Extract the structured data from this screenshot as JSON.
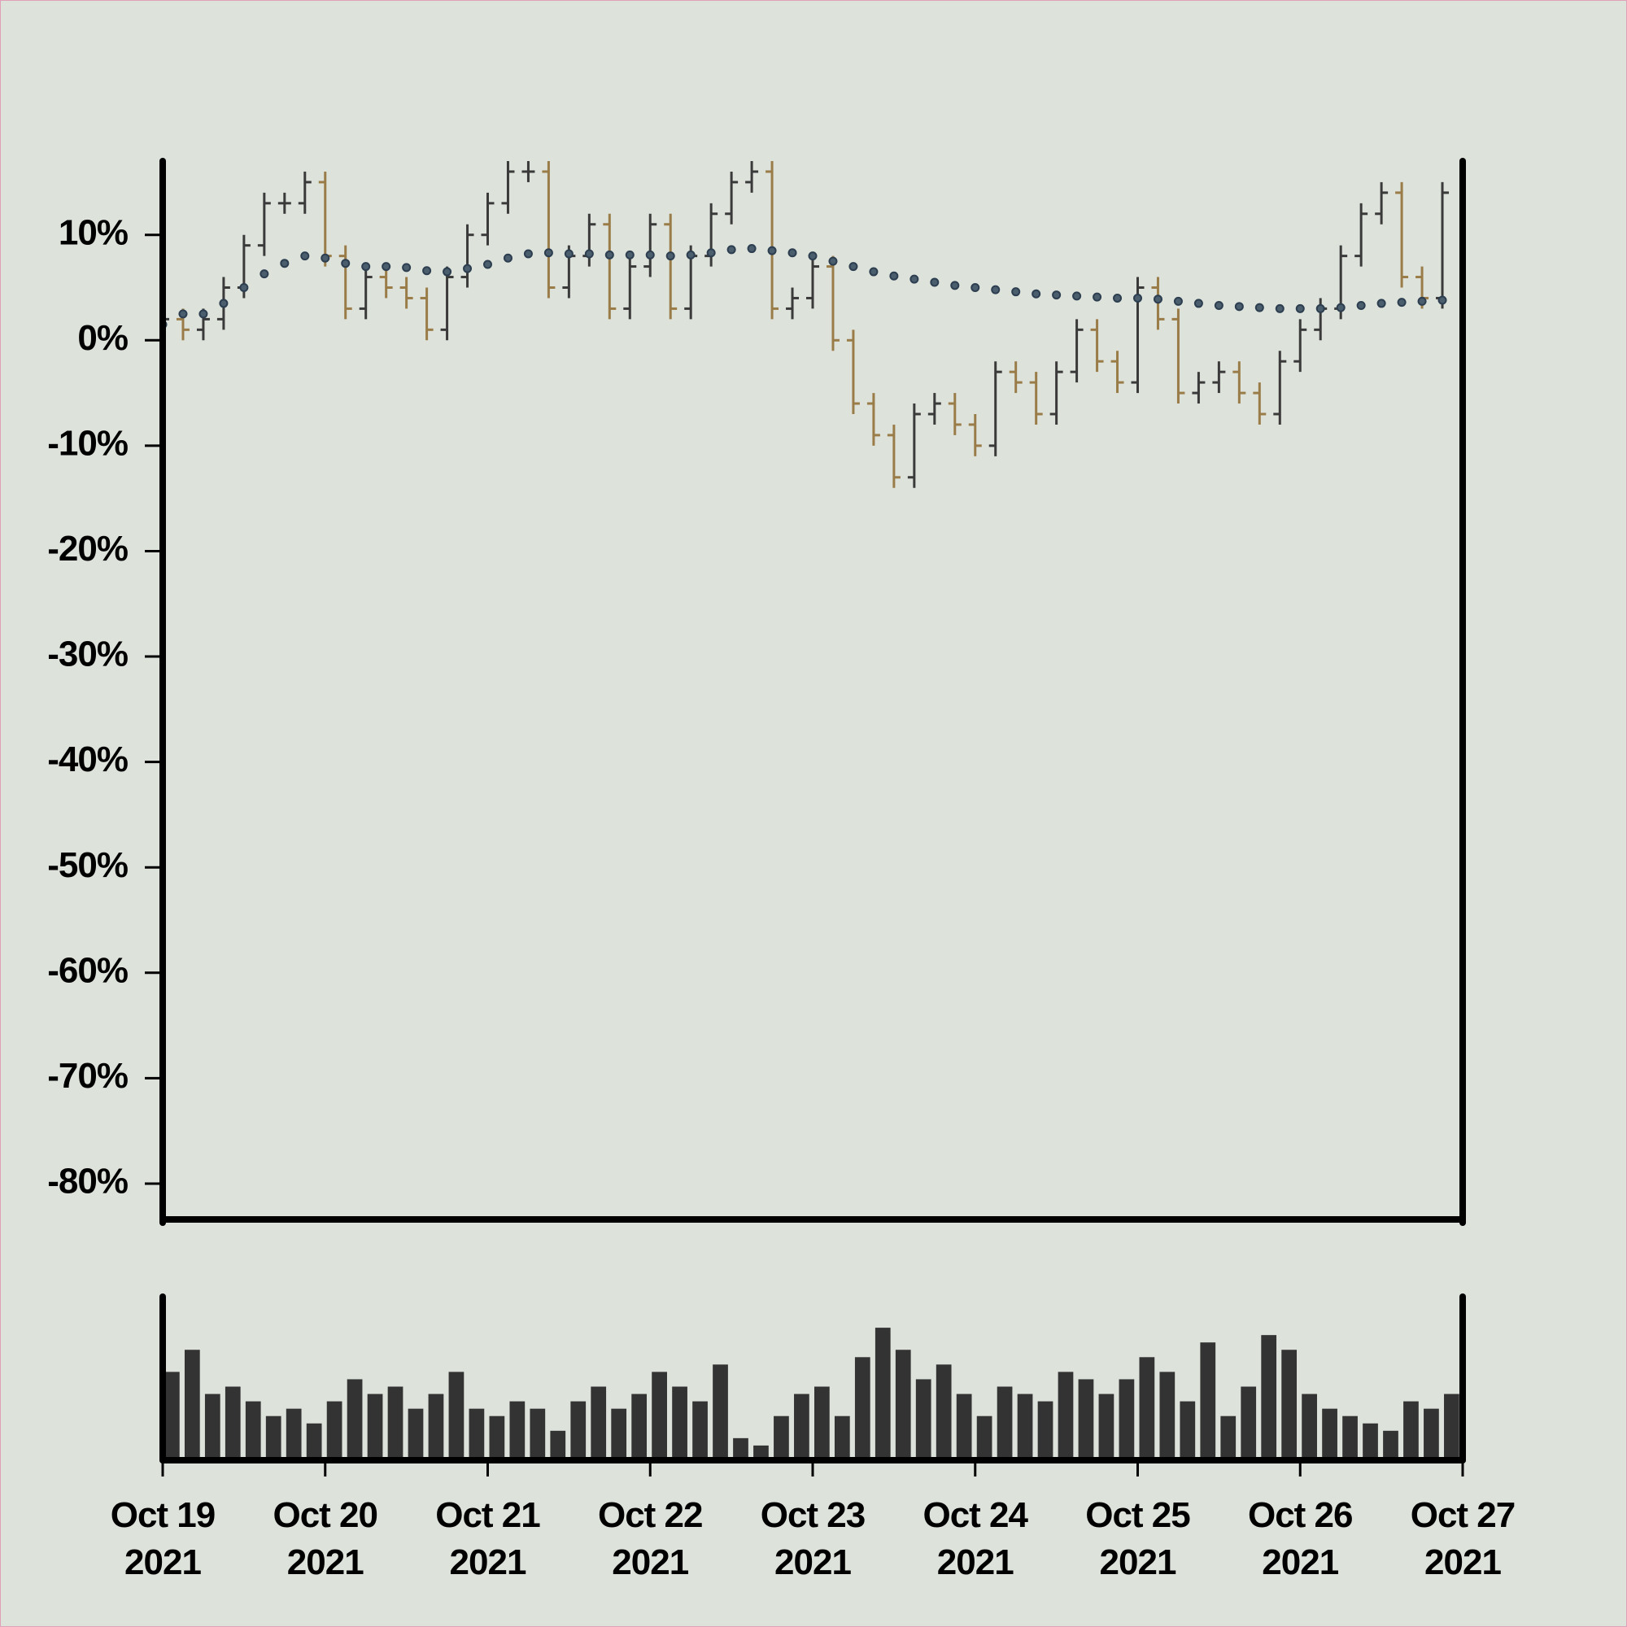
{
  "chart_data": [
    {
      "type": "ohlc",
      "x": [
        0,
        0.125,
        0.25,
        0.375,
        0.5,
        0.625,
        0.75,
        0.875,
        1,
        1.125,
        1.25,
        1.375,
        1.5,
        1.625,
        1.75,
        1.875,
        2,
        2.125,
        2.25,
        2.375,
        2.5,
        2.625,
        2.75,
        2.875,
        3,
        3.125,
        3.25,
        3.375,
        3.5,
        3.625,
        3.75,
        3.875,
        4,
        4.125,
        4.25,
        4.375,
        4.5,
        4.625,
        4.75,
        4.875,
        5,
        5.125,
        5.25,
        5.375,
        5.5,
        5.625,
        5.75,
        5.875,
        6,
        6.125,
        6.25,
        6.375,
        6.5,
        6.625,
        6.75,
        6.875,
        7,
        7.125,
        7.25,
        7.375,
        7.5,
        7.625,
        7.75,
        7.875
      ],
      "open": [
        1.5,
        2,
        1,
        2,
        5,
        9,
        13,
        13,
        15,
        8,
        3,
        6,
        5,
        4,
        1,
        6,
        10,
        13,
        16,
        16,
        5,
        8,
        11,
        3,
        7,
        11,
        3,
        8,
        12,
        15,
        16,
        3,
        4,
        7,
        0,
        -6,
        -9,
        -13,
        -7,
        -6,
        -8,
        -10,
        -3,
        -4,
        -7,
        -3,
        1,
        -2,
        -4,
        5,
        2,
        -5,
        -4,
        -3,
        -5,
        -7,
        -2,
        1,
        3,
        8,
        12,
        14,
        6,
        4
      ],
      "high": [
        3,
        3,
        3,
        6,
        10,
        14,
        14,
        16,
        16,
        9,
        7,
        7,
        6,
        5,
        7,
        11,
        14,
        17,
        17,
        17,
        9,
        12,
        12,
        8,
        12,
        12,
        9,
        13,
        16,
        17,
        17,
        5,
        8,
        8,
        1,
        -5,
        -8,
        -6,
        -5,
        -5,
        -7,
        -2,
        -2,
        -3,
        -2,
        2,
        2,
        -1,
        6,
        6,
        3,
        -3,
        -2,
        -2,
        -4,
        -1,
        2,
        4,
        9,
        13,
        15,
        15,
        7,
        15
      ],
      "low": [
        0.5,
        0,
        0,
        1,
        4,
        8,
        12,
        12,
        7,
        2,
        2,
        4,
        3,
        0,
        0,
        5,
        9,
        12,
        15,
        4,
        4,
        7,
        2,
        2,
        6,
        2,
        2,
        7,
        11,
        14,
        2,
        2,
        3,
        -1,
        -7,
        -10,
        -14,
        -14,
        -8,
        -9,
        -11,
        -11,
        -5,
        -8,
        -8,
        -4,
        -3,
        -5,
        -5,
        1,
        -6,
        -6,
        -5,
        -6,
        -8,
        -8,
        -3,
        0,
        2,
        7,
        11,
        5,
        3,
        3
      ],
      "close": [
        2,
        1,
        2,
        5,
        9,
        13,
        13,
        15,
        8,
        3,
        6,
        5,
        4,
        1,
        6,
        10,
        13,
        16,
        16,
        5,
        8,
        11,
        3,
        7,
        11,
        3,
        8,
        12,
        15,
        16,
        3,
        4,
        7,
        0,
        -6,
        -9,
        -13,
        -7,
        -6,
        -8,
        -10,
        -3,
        -4,
        -7,
        -3,
        1,
        -2,
        -4,
        5,
        2,
        -5,
        -4,
        -3,
        -5,
        -7,
        -2,
        1,
        3,
        8,
        12,
        14,
        6,
        4,
        14
      ],
      "up_color": "#3a3a3a",
      "down_color": "#9a7c48",
      "ma": {
        "color": "#2c3e4f",
        "values": [
          1.5,
          2.5,
          2.5,
          3.5,
          5,
          6.3,
          7.3,
          8,
          7.8,
          7.3,
          7,
          7,
          6.9,
          6.6,
          6.5,
          6.8,
          7.2,
          7.8,
          8.2,
          8.3,
          8.2,
          8.2,
          8.1,
          8.1,
          8.1,
          8,
          8.1,
          8.3,
          8.6,
          8.7,
          8.5,
          8.3,
          8,
          7.5,
          7,
          6.5,
          6.1,
          5.8,
          5.5,
          5.2,
          5,
          4.8,
          4.6,
          4.4,
          4.3,
          4.2,
          4.1,
          4,
          4,
          3.9,
          3.7,
          3.5,
          3.3,
          3.2,
          3.1,
          3,
          3,
          3,
          3.1,
          3.3,
          3.5,
          3.6,
          3.7,
          3.8
        ]
      },
      "xlim": [
        0,
        8
      ],
      "ylim": [
        -83.4,
        17
      ],
      "yticks": [
        {
          "value": 10,
          "label": "10%"
        },
        {
          "value": 0,
          "label": "0%"
        },
        {
          "value": -10,
          "label": "-10%"
        },
        {
          "value": -20,
          "label": "-20%"
        },
        {
          "value": -30,
          "label": "-30%"
        },
        {
          "value": -40,
          "label": "-40%"
        },
        {
          "value": -50,
          "label": "-50%"
        },
        {
          "value": -60,
          "label": "-60%"
        },
        {
          "value": -70,
          "label": "-70%"
        },
        {
          "value": -80,
          "label": "-80%"
        }
      ]
    },
    {
      "type": "bar",
      "x": [
        0,
        0.125,
        0.25,
        0.375,
        0.5,
        0.625,
        0.75,
        0.875,
        1,
        1.125,
        1.25,
        1.375,
        1.5,
        1.625,
        1.75,
        1.875,
        2,
        2.125,
        2.25,
        2.375,
        2.5,
        2.625,
        2.75,
        2.875,
        3,
        3.125,
        3.25,
        3.375,
        3.5,
        3.625,
        3.75,
        3.875,
        4,
        4.125,
        4.25,
        4.375,
        4.5,
        4.625,
        4.75,
        4.875,
        5,
        5.125,
        5.25,
        5.375,
        5.5,
        5.625,
        5.75,
        5.875,
        6,
        6.125,
        6.25,
        6.375,
        6.5,
        6.625,
        6.75,
        6.875,
        7,
        7.125,
        7.25,
        7.375,
        7.5,
        7.625,
        7.75,
        7.875
      ],
      "values": [
        60,
        75,
        45,
        50,
        40,
        30,
        35,
        25,
        40,
        55,
        45,
        50,
        35,
        45,
        60,
        35,
        30,
        40,
        35,
        20,
        40,
        50,
        35,
        45,
        60,
        50,
        40,
        65,
        15,
        10,
        30,
        45,
        50,
        30,
        70,
        90,
        75,
        55,
        65,
        45,
        30,
        50,
        45,
        40,
        60,
        55,
        45,
        55,
        70,
        60,
        40,
        80,
        30,
        50,
        85,
        75,
        45,
        35,
        30,
        25,
        20,
        40,
        35,
        45
      ],
      "color": "#333333",
      "xlim": [
        0,
        8
      ],
      "ylim": [
        0,
        100
      ],
      "xticks": [
        {
          "value": 0,
          "label": "Oct 19\n2021"
        },
        {
          "value": 1,
          "label": "Oct 20\n2021"
        },
        {
          "value": 2,
          "label": "Oct 21\n2021"
        },
        {
          "value": 3,
          "label": "Oct 22\n2021"
        },
        {
          "value": 4,
          "label": "Oct 23\n2021"
        },
        {
          "value": 5,
          "label": "Oct 24\n2021"
        },
        {
          "value": 6,
          "label": "Oct 25\n2021"
        },
        {
          "value": 7,
          "label": "Oct 26\n2021"
        },
        {
          "value": 8,
          "label": "Oct 27\n2021"
        }
      ]
    }
  ]
}
